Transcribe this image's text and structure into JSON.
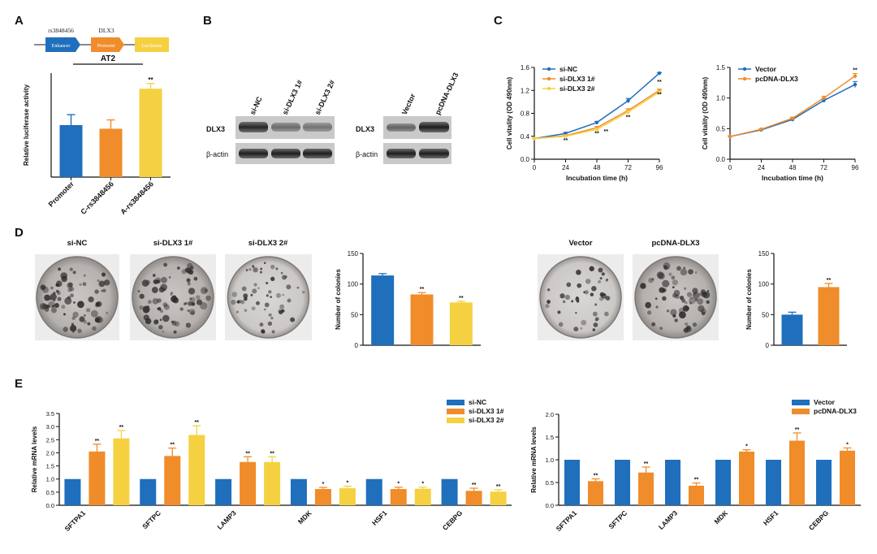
{
  "colors": {
    "blue": "#1f6fbd",
    "orange": "#f08c2a",
    "yellow": "#f5d142",
    "axis": "#111111"
  },
  "panel_letters": [
    "A",
    "B",
    "C",
    "D",
    "E"
  ],
  "panelA": {
    "construct": {
      "snp_label": "rs3848456",
      "gene_label": "DLX3",
      "boxes": [
        "Enhancer",
        "Promoter",
        "Luciferase"
      ]
    },
    "group_label": "AT2"
  },
  "panelB": {
    "left_lanes": [
      "si-NC",
      "si-DLX3 1#",
      "si-DLX3 2#"
    ],
    "right_lanes": [
      "Vector",
      "pcDNA-DLX3"
    ],
    "row_labels": [
      "DLX3",
      "β-actin"
    ]
  },
  "panelD": {
    "left_plate_labels": [
      "si-NC",
      "si-DLX3 1#",
      "si-DLX3 2#"
    ],
    "right_plate_labels": [
      "Vector",
      "pcDNA-DLX3"
    ]
  },
  "chart_data": [
    {
      "id": "A",
      "type": "bar",
      "categories": [
        "Promoter",
        "C-rs3848456",
        "A-rs3848456"
      ],
      "values": [
        1.0,
        0.93,
        1.7
      ],
      "errors": [
        0.2,
        0.17,
        0.1
      ],
      "colors": [
        "#1f6fbd",
        "#f08c2a",
        "#f5d142"
      ],
      "sig": [
        "",
        "",
        "**"
      ],
      "ylabel": "Relative luciferase activity",
      "ylim": [
        0,
        2.0
      ],
      "yticks": [],
      "xtick_rotate": true
    },
    {
      "id": "C1",
      "type": "line",
      "x": [
        0,
        24,
        48,
        72,
        96
      ],
      "xticks": [
        "0",
        "24",
        "48",
        "72",
        "96"
      ],
      "xlabel": "Incubation time (h)",
      "ylabel": "Cell vitality (OD 490nm)",
      "ylim": [
        0,
        1.6
      ],
      "yticks": [
        "0.0",
        "0.4",
        "0.8",
        "1.2",
        "1.6"
      ],
      "legend_position": "top-left",
      "series": [
        {
          "name": "si-NC",
          "values": [
            0.36,
            0.45,
            0.64,
            1.02,
            1.5
          ],
          "color": "#1f6fbd",
          "errors": [
            0.01,
            0.02,
            0.02,
            0.04,
            0.01
          ]
        },
        {
          "name": "si-DLX3 1#",
          "values": [
            0.36,
            0.41,
            0.55,
            0.85,
            1.2
          ],
          "color": "#f08c2a",
          "errors": [
            0.01,
            0.01,
            0.02,
            0.03,
            0.02
          ]
        },
        {
          "name": "si-DLX3 2#",
          "values": [
            0.36,
            0.4,
            0.52,
            0.82,
            1.17
          ],
          "color": "#f5d142",
          "errors": [
            0.01,
            0.01,
            0.02,
            0.03,
            0.02
          ]
        }
      ],
      "sig_marks": [
        {
          "x": 24,
          "y": 0.3,
          "text": "**"
        },
        {
          "x": 48,
          "y": 0.42,
          "text": "**"
        },
        {
          "x": 55,
          "y": 0.45,
          "text": "**"
        },
        {
          "x": 72,
          "y": 0.7,
          "text": "**"
        },
        {
          "x": 96,
          "y": 1.32,
          "text": "**"
        },
        {
          "x": 96,
          "y": 1.1,
          "text": "**"
        }
      ]
    },
    {
      "id": "C2",
      "type": "line",
      "x": [
        0,
        24,
        48,
        72,
        96
      ],
      "xticks": [
        "0",
        "24",
        "48",
        "72",
        "96"
      ],
      "xlabel": "Incubation time (h)",
      "ylabel": "Cell vitality (OD 490nm)",
      "ylim": [
        0,
        1.5
      ],
      "yticks": [
        "0.0",
        "0.5",
        "1.0",
        "1.5"
      ],
      "legend_position": "top-left",
      "series": [
        {
          "name": "Vector",
          "values": [
            0.37,
            0.48,
            0.65,
            0.96,
            1.22
          ],
          "color": "#1f6fbd",
          "errors": [
            0.01,
            0.01,
            0.02,
            0.03,
            0.05
          ]
        },
        {
          "name": "pcDNA-DLX3",
          "values": [
            0.37,
            0.49,
            0.67,
            1.0,
            1.36
          ],
          "color": "#f08c2a",
          "errors": [
            0.01,
            0.01,
            0.02,
            0.03,
            0.04
          ]
        }
      ],
      "sig_marks": [
        {
          "x": 96,
          "y": 1.43,
          "text": "**"
        }
      ]
    },
    {
      "id": "D1",
      "type": "bar",
      "categories": [
        "si-NC",
        "si-DLX3 1#",
        "si-DLX3 2#"
      ],
      "values": [
        114,
        83,
        70
      ],
      "errors": [
        3,
        3,
        2
      ],
      "colors": [
        "#1f6fbd",
        "#f08c2a",
        "#f5d142"
      ],
      "sig": [
        "",
        "**",
        "**"
      ],
      "ylabel": "Number of colonies",
      "ylim": [
        0,
        150
      ],
      "yticks": [
        "0",
        "50",
        "100",
        "150"
      ],
      "show_xticks": false
    },
    {
      "id": "D2",
      "type": "bar",
      "categories": [
        "Vector",
        "pcDNA-DLX3"
      ],
      "values": [
        50,
        95
      ],
      "errors": [
        4,
        6
      ],
      "colors": [
        "#1f6fbd",
        "#f08c2a"
      ],
      "sig": [
        "",
        "**"
      ],
      "ylabel": "Number of colonies",
      "ylim": [
        0,
        150
      ],
      "yticks": [
        "0",
        "50",
        "100",
        "150"
      ],
      "show_xticks": false
    },
    {
      "id": "E1",
      "type": "bar",
      "categories": [
        "SFTPA1",
        "SFTPC",
        "LAMP3",
        "MDK",
        "HSF1",
        "CEBPG"
      ],
      "ylabel": "Relative mRNA levels",
      "ylim": [
        0,
        3.5
      ],
      "yticks": [
        "0.0",
        "0.5",
        "1.0",
        "1.5",
        "2.0",
        "2.5",
        "3.0",
        "3.5"
      ],
      "legend_position": "top-right",
      "xtick_rotate": true,
      "series": [
        {
          "name": "si-NC",
          "color": "#1f6fbd",
          "values": [
            1,
            1,
            1,
            1,
            1,
            1
          ],
          "errors": [
            0,
            0,
            0,
            0,
            0,
            0
          ],
          "sig": [
            "",
            "",
            "",
            "",
            "",
            ""
          ]
        },
        {
          "name": "si-DLX3 1#",
          "color": "#f08c2a",
          "values": [
            2.05,
            1.88,
            1.65,
            0.62,
            0.62,
            0.55
          ],
          "errors": [
            0.28,
            0.3,
            0.2,
            0.06,
            0.07,
            0.1
          ],
          "sig": [
            "**",
            "**",
            "**",
            "*",
            "*",
            "**"
          ]
        },
        {
          "name": "si-DLX3 2#",
          "color": "#f5d142",
          "values": [
            2.55,
            2.68,
            1.65,
            0.65,
            0.63,
            0.52
          ],
          "errors": [
            0.3,
            0.35,
            0.2,
            0.08,
            0.06,
            0.07
          ],
          "sig": [
            "**",
            "**",
            "**",
            "*",
            "*",
            "**"
          ]
        }
      ]
    },
    {
      "id": "E2",
      "type": "bar",
      "categories": [
        "SFTPA1",
        "SFTPC",
        "LAMP3",
        "MDK",
        "HSF1",
        "CEBPG"
      ],
      "ylabel": "Relative mRNA levels",
      "ylim": [
        0,
        2.0
      ],
      "yticks": [
        "0.0",
        "0.5",
        "1.0",
        "1.5",
        "2.0"
      ],
      "legend_position": "top-right",
      "xtick_rotate": true,
      "series": [
        {
          "name": "Vector",
          "color": "#1f6fbd",
          "values": [
            1,
            1,
            1,
            1,
            1,
            1
          ],
          "errors": [
            0,
            0,
            0,
            0,
            0,
            0
          ],
          "sig": [
            "",
            "",
            "",
            "",
            "",
            ""
          ]
        },
        {
          "name": "pcDNA-DLX3",
          "color": "#f08c2a",
          "values": [
            0.53,
            0.72,
            0.43,
            1.18,
            1.42,
            1.2
          ],
          "errors": [
            0.05,
            0.12,
            0.06,
            0.04,
            0.17,
            0.06
          ],
          "sig": [
            "**",
            "**",
            "**",
            "*",
            "**",
            "*"
          ]
        }
      ]
    }
  ]
}
